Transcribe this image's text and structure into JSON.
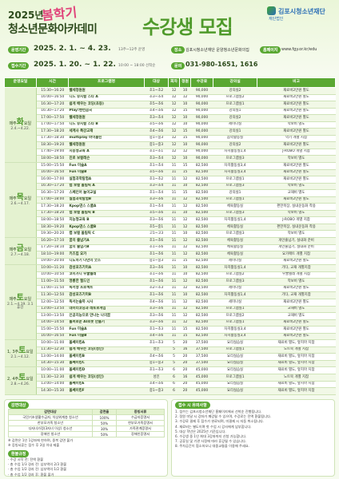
{
  "header": {
    "year": "2025년",
    "season": "봄학기",
    "academy": "청소년문화아카데미",
    "title": "수강생 모집",
    "org_small": "재단법인",
    "org": "김포시청소년재단"
  },
  "info": [
    {
      "label": "운영기간",
      "value": "2025. 2. 1. ~ 4. 23.",
      "note": "13주~12주 운영"
    },
    {
      "label": "접수기간",
      "value": "2025. 1. 20. ~ 1. 22.",
      "note": "10:00 ~ 18:00 선착순"
    }
  ],
  "contact": {
    "place_label": "장소",
    "place": "김포시청소년재단 운양청소년문화의집",
    "web_label": "홈페이지",
    "web": "www.fgy.or.kr/edu",
    "tel_label": "문의",
    "tel": "031-980-1651, 1616"
  },
  "table": {
    "headers": [
      "운영요일",
      "시간",
      "프로그램명",
      "대상",
      "회차",
      "정원",
      "수강료",
      "강의실",
      "비고"
    ],
    "groups": [
      {
        "prefix": "매주",
        "day": "화",
        "suffix": "요일",
        "period": "2.4.~4.22.",
        "rows": [
          [
            "15:30~16:20",
            "웰세청원원",
            "초1~초2",
            "12",
            "10",
            "90,000",
            "강의실2",
            "재료비2만원 별도"
          ],
          [
            "16:00~16:50",
            "니드 뮤지컬 스타 A",
            "초3~초4",
            "12",
            "12",
            "90,000",
            "프로그램실2",
            "재료비2만원 별도"
          ],
          [
            "16:30~17:20",
            "쉽게 배우는 코딩(초등)",
            "초5~초6",
            "12",
            "10",
            "90,000",
            "프로그램실1",
            "재료비2만원 별도"
          ],
          [
            "16:30~17:20",
            "Play!밴런곰국",
            "초4~초6",
            "12",
            "15",
            "90,000",
            "강의실1",
            "재료비2만원 별도"
          ],
          [
            "17:00~17:50",
            "웰세청원원",
            "초3~초4",
            "12",
            "10",
            "90,000",
            "강의실2",
            "재료비2만원 별도"
          ],
          [
            "17:00~17:50",
            "니드 뮤지컬 스타 B",
            "초5~초6",
            "12",
            "10",
            "90,000",
            "세미나실",
            "악보비 별도"
          ],
          [
            "17:30~18:20",
            "세계사 특강교재",
            "초4~초6",
            "12",
            "15",
            "90,000",
            "강의실1",
            "재료비2만원 별도"
          ],
          [
            "17:30~18:30",
            "multiplay 바이올린",
            "중1~중3",
            "12",
            "15",
            "90,000",
            "음악활동실",
            "악기 개별 지참"
          ],
          [
            "18:30~19:20",
            "웰세청원원",
            "중1~중3",
            "12",
            "10",
            "90,000",
            "강의실2",
            "재료비2만원 별도"
          ],
          [
            "17:40~19:00",
            "지능형교육 A",
            "초1~초1",
            "12",
            "12",
            "90,000",
            "자치활동실1,4",
            "J-ROBO 개별 지참"
          ],
          [
            "18:00~18:50",
            "진로 보컬레슨",
            "초3~초4",
            "12",
            "10",
            "90,000",
            "프로그램실3",
            "악보비 별도"
          ]
        ]
      },
      {
        "prefix": "매주",
        "day": "목",
        "suffix": "요일",
        "period": "2.6.~4.17.",
        "rows": [
          [
            "15:00~15:50",
            "Fun 미술A",
            "초1~초4",
            "11",
            "15",
            "82,500",
            "자치활동실3,4",
            "재료비2만원 별도"
          ],
          [
            "16:00~16:50",
            "Fun 미술B",
            "초5~초6",
            "11",
            "15",
            "82,500",
            "자치활동실3,4",
            "재료비2만원 별도"
          ],
          [
            "16:00~17:00",
            "실험과학탐험A",
            "초1~초2",
            "11",
            "12",
            "82,500",
            "프로그램실1",
            "재료비2만원 별도"
          ],
          [
            "16:30~17:20",
            "랩 보컬 올림픽 A",
            "초3~초4",
            "11",
            "10",
            "82,500",
            "프로그램실3",
            "악보비 별도"
          ],
          [
            "16:30~17:20",
            "스페인어 놀이교실",
            "초1~초4",
            "11",
            "15",
            "82,500",
            "강의실1",
            "교재비 별도"
          ],
          [
            "17:00~18:00",
            "실험과학탐험B",
            "초3~초6",
            "11",
            "12",
            "82,500",
            "프로그램실1",
            "재료비2만원 별도"
          ],
          [
            "17:30~18:20",
            "Kpop댄스 스쿨A",
            "초1~초4",
            "11",
            "12",
            "82,500",
            "체육활동실",
            "편한복장, 실내운동화 착용"
          ],
          [
            "17:30~18:20",
            "랩 보컬 올림픽 B",
            "초5~초6",
            "11",
            "10",
            "82,500",
            "프로그램실3",
            "악보비 별도"
          ],
          [
            "18:00~18:50",
            "지능형교육 B",
            "초3~초6",
            "11",
            "12",
            "82,500",
            "자치활동실1,4",
            "J-ROBO 개별 지참"
          ],
          [
            "18:30~19:20",
            "Kpop댄스 스쿨B",
            "초5~중1",
            "11",
            "12",
            "82,500",
            "체육활동실",
            "편한복장, 실내운동화 착용"
          ],
          [
            "19:30~20:20",
            "랩 보컬 올림픽 C",
            "고1~고3",
            "11",
            "10",
            "82,500",
            "프로그램실3",
            "악보비 별도"
          ]
        ]
      },
      {
        "prefix": "매주",
        "day": "금",
        "suffix": "요일",
        "period": "2.7.~4.18.",
        "rows": [
          [
            "16:20~17:10",
            "꿈의 줄넘기A",
            "초1~초6",
            "11",
            "12",
            "82,500",
            "체육활동실",
            "개인줄넘기, 실내화 준비"
          ],
          [
            "17:20~18:10",
            "꿈의 줄넘기B",
            "초1~초6",
            "11",
            "12",
            "82,500",
            "체육활동실",
            "개인줄넘기, 실내화 준비"
          ],
          [
            "18:10~19:00",
            "키즈힙 요가",
            "초1~초6",
            "11",
            "12",
            "82,500",
            "체육활동실",
            "요가매트 개별 지참"
          ],
          [
            "19:00~20:00",
            "니도하기 나만의 굿즈",
            "중1~중3",
            "11",
            "15",
            "82,500",
            "세미나실",
            "재료비2만원 별도"
          ]
        ]
      },
      {
        "prefix": "매주",
        "day": "토",
        "suffix": "요일",
        "period": "2.1.~4.19. 3.1 휴강",
        "rows": [
          [
            "10:00~11:20",
            "감성포즈기미A",
            "초3~초6",
            "11",
            "10",
            "82,500",
            "자치활동실1,4",
            "기타, 교재 개별지참"
          ],
          [
            "10:00~10:50",
            "코미가디 우쿨렐레",
            "초1~초6",
            "11",
            "10",
            "82,500",
            "프로그램실2",
            "우쿨렐레 개별 지참"
          ],
          [
            "11:00~11:50",
            "영롱한 필드인",
            "초1~초6",
            "11",
            "12",
            "82,500",
            "프로그램실3",
            "악보비 별도"
          ],
          [
            "11:00~11:50",
            "독서형 프로젝트",
            "초2~초3",
            "11",
            "12",
            "82,500",
            "세미나실",
            "재료비2만원 별도"
          ],
          [
            "11:30~12:50",
            "감성포즈기미B",
            "초1~초6",
            "11",
            "10",
            "82,500",
            "자치활동실1,4",
            "기타, 교재 개별지참"
          ],
          [
            "12:00~12:50",
            "독서는솔까 시사",
            "초4~초6",
            "11",
            "12",
            "82,500",
            "세미나실",
            "재료비2만원 별도"
          ],
          [
            "13:00~13:50",
            "데이터코딩과 레토로게임",
            "초3~초6",
            "11",
            "12",
            "82,500",
            "프로그램실1",
            "교재비 별도"
          ],
          [
            "13:00~13:50",
            "인공지능으로 만나는 나의꿈",
            "초3~초6",
            "11",
            "12",
            "82,500",
            "프로그램실2",
            "교재비 별도"
          ],
          [
            "14:00~14:50",
            "롤퍼로운 AI로봇 만들기",
            "초3~초6",
            "11",
            "12",
            "82,500",
            "프로그램실1",
            "재료비2만원 별도"
          ],
          [
            "15:00~15:50",
            "Fun 미술A",
            "초1~초3",
            "11",
            "15",
            "82,500",
            "자치활동실3,4",
            "재료비2만원 별도"
          ],
          [
            "16:00~16:50",
            "Fun 미술B",
            "초4~초6",
            "11",
            "15",
            "82,500",
            "자치활동실3,4",
            "재료비2만원 별도"
          ]
        ]
      },
      {
        "prefix": "1, 3주",
        "day": "토",
        "suffix": "요일",
        "period": "2.1.~4.12.",
        "rows": [
          [
            "10:00~11:00",
            "올쎄이킹A",
            "초1~초3",
            "5",
            "20",
            "37,500",
            "요리실습실",
            "재료비 별도, 앞치마 지참"
          ],
          [
            "11:30~12:30",
            "쉽게 배우는 코딩(성인)",
            "성인",
            "5",
            "16",
            "37,500",
            "프로그램실1",
            "노트북 개별 지참"
          ],
          [
            "13:00~14:00",
            "올쎄이킹B",
            "초4~초6",
            "5",
            "20",
            "37,500",
            "요리실습실",
            "재료비 별도, 앞치마 지참"
          ],
          [
            "14:30~15:30",
            "올쎄이킹C",
            "중1~중3",
            "5",
            "20",
            "37,500",
            "요리실습실",
            "재료비 별도, 앞치마 지참"
          ]
        ]
      },
      {
        "prefix": "2, 4주",
        "day": "토",
        "suffix": "요일",
        "period": "2.8.~4.26.",
        "rows": [
          [
            "10:00~11:00",
            "올쎄이킹D",
            "초1~초3",
            "6",
            "20",
            "45,000",
            "요리실습실",
            "재료비 별도, 앞치마 지참"
          ],
          [
            "11:30~12:30",
            "쉽게 배우는 코딩(성인)",
            "성인",
            "6",
            "16",
            "45,000",
            "프로그램실1",
            "노트북 개별 지참"
          ],
          [
            "13:00~14:00",
            "올쎄이킹E",
            "초4~초6",
            "6",
            "20",
            "45,000",
            "요리실습실",
            "재료비 별도, 앞치마 지참"
          ],
          [
            "14:30~15:30",
            "올쎄이킹F",
            "중1~중3",
            "6",
            "20",
            "45,000",
            "요리실습실",
            "재료비 별도, 앞치마 지참"
          ]
        ]
      }
    ]
  },
  "discount": {
    "title": "감면대상",
    "headers": [
      "감면대상",
      "감면율",
      "증빙서류"
    ],
    "rows": [
      [
        "국민기초생활수급자, 차상위계층 청소년",
        "100%",
        "수급자증명서"
      ],
      [
        "한부모가족 청소년",
        "50%",
        "한부모가족증명서"
      ],
      [
        "다자녀가정(3자녀 이상) 청소년",
        "30%",
        "가족관계증명서"
      ],
      [
        "장애인 청소년",
        "50%",
        "장애인증명서"
      ]
    ],
    "notes": [
      "※ 감면은 1인 1강좌에 한하며, 중복 감면 불가",
      "※ 증빙서류는 접수 후 3일 이내 제출"
    ]
  },
  "notice": {
    "title": "접수 시 유의사항",
    "items": [
      "1. 접수는 김포시청소년재단 홈페이지에서 선착순 진행됩니다.",
      "2. 정원 미달 시 강좌가 폐강될 수 있으며, 수강료는 전액 환불됩니다.",
      "3. 수강료 결제 후 접수가 완료되며, 미결제 시 자동 취소됩니다.",
      "4. 재료비는 별도이며 첫 수업 시 강사에게 납부합니다.",
      "5. 대상 학년은 2025년 기준입니다.",
      "6. 수강생 중 1인 최대 3강좌까지 신청 가능합니다.",
      "7. 공휴일 및 기관 사정에 따라 휴강될 수 있습니다.",
      "8. 주차공간이 협소하오니 대중교통을 이용해 주세요."
    ]
  },
  "refund": {
    "title": "환불규정",
    "items": [
      "· 수강 시작 전: 전액 환불",
      "· 총 수업 1/3 경과 전: 납부액의 2/3 환불",
      "· 총 수업 1/2 경과 전: 납부액의 1/2 환불",
      "· 총 수업 1/2 경과 후: 환불 불가"
    ]
  }
}
